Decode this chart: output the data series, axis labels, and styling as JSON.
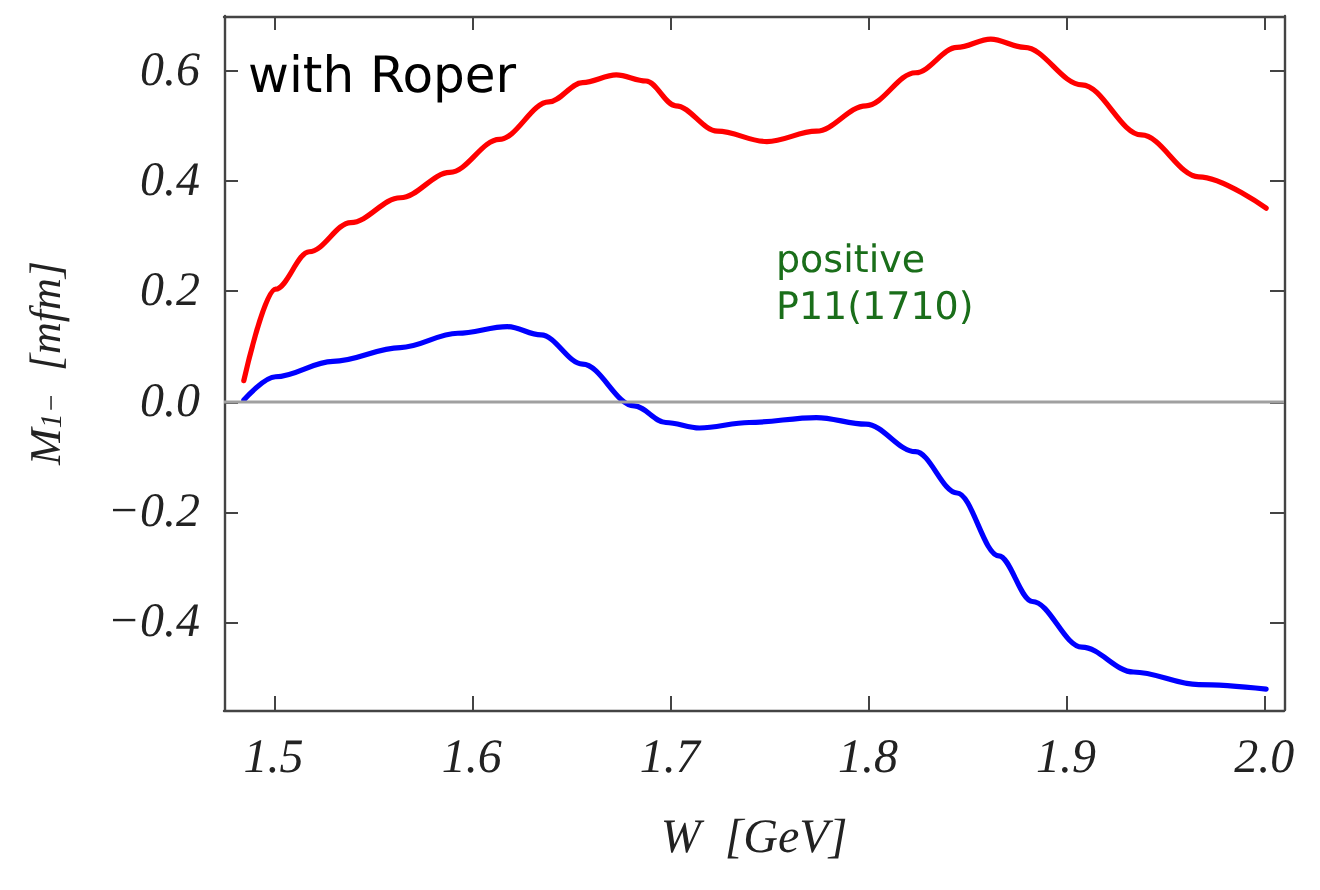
{
  "chart_data": {
    "type": "line",
    "xlabel": "W  [GeV]",
    "ylabel": "M$_{1−}$  [mfm]",
    "annotations": [
      "with Roper",
      "positive\nP11(1710)"
    ],
    "xlim": [
      1.475,
      2.01
    ],
    "ylim": [
      -0.56,
      0.7
    ],
    "xticks": [
      1.5,
      1.6,
      1.7,
      1.8,
      1.9,
      {
        "value": 2,
        "label": "2.0"
      }
    ],
    "yticks": [
      -0.4,
      -0.2,
      {
        "value": 0,
        "label": "0.0"
      },
      0.2,
      0.4,
      0.6
    ],
    "grid": false,
    "marker": "none",
    "line_style": "solid",
    "ref_lines": [
      {
        "axis": "y",
        "value": 0,
        "color": "#a0a0a0"
      }
    ],
    "series": [
      {
        "color": "#ff0000",
        "x": [
          1.485,
          1.501,
          1.518,
          1.539,
          1.564,
          1.589,
          1.614,
          1.639,
          1.656,
          1.673,
          1.688,
          1.703,
          1.724,
          1.749,
          1.774,
          1.799,
          1.824,
          1.845,
          1.862,
          1.879,
          1.908,
          1.938,
          1.967,
          2.001
        ],
        "values": [
          0.038,
          0.204,
          0.272,
          0.325,
          0.37,
          0.416,
          0.476,
          0.544,
          0.579,
          0.593,
          0.582,
          0.537,
          0.491,
          0.472,
          0.491,
          0.537,
          0.597,
          0.643,
          0.658,
          0.643,
          0.575,
          0.484,
          0.408,
          0.351
        ]
      },
      {
        "color": "#0000ff",
        "x": [
          1.485,
          1.501,
          1.53,
          1.564,
          1.593,
          1.618,
          1.635,
          1.656,
          1.682,
          1.698,
          1.715,
          1.74,
          1.774,
          1.799,
          1.824,
          1.845,
          1.866,
          1.883,
          1.908,
          1.934,
          1.967,
          2.001
        ],
        "values": [
          0.003,
          0.045,
          0.073,
          0.098,
          0.124,
          0.136,
          0.121,
          0.068,
          -0.008,
          -0.038,
          -0.048,
          -0.038,
          -0.029,
          -0.041,
          -0.091,
          -0.166,
          -0.28,
          -0.363,
          -0.446,
          -0.491,
          -0.514,
          -0.522
        ]
      }
    ]
  }
}
